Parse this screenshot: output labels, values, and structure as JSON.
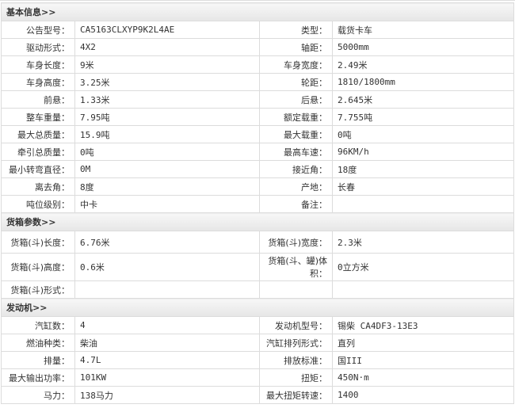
{
  "basic": {
    "title": "基本信息>>",
    "rows": [
      [
        "公告型号：",
        "CA5163CLXYP9K2L4AE",
        "类型：",
        "载货卡车"
      ],
      [
        "驱动形式：",
        "4X2",
        "轴距：",
        "5000mm"
      ],
      [
        "车身长度：",
        "9米",
        "车身宽度：",
        "2.49米"
      ],
      [
        "车身高度：",
        "3.25米",
        "轮距：",
        "1810/1800mm"
      ],
      [
        "前悬：",
        "1.33米",
        "后悬：",
        "2.645米"
      ],
      [
        "整车重量：",
        "7.95吨",
        "额定载重：",
        "7.755吨"
      ],
      [
        "最大总质量：",
        "15.9吨",
        "最大载重：",
        "0吨"
      ],
      [
        "牵引总质量：",
        "0吨",
        "最高车速：",
        "96KM/h"
      ],
      [
        "最小转弯直径：",
        "0M",
        "接近角：",
        "18度"
      ],
      [
        "离去角：",
        "8度",
        "产地：",
        "长春"
      ],
      [
        "吨位级别：",
        "中卡",
        "备注：",
        ""
      ]
    ]
  },
  "cargo": {
    "title": "货箱参数>>",
    "rows": [
      [
        "货箱(斗)长度：",
        "6.76米",
        "货箱(斗)宽度：",
        "2.3米"
      ],
      [
        "货箱(斗)高度：",
        "0.6米",
        "货箱(斗、罐)体积：",
        "0立方米"
      ],
      [
        "货箱(斗)形式：",
        "",
        "",
        ""
      ]
    ]
  },
  "engine": {
    "title": "发动机>>",
    "rows": [
      [
        "汽缸数：",
        "4",
        "发动机型号：",
        "锡柴 CA4DF3-13E3"
      ],
      [
        "燃油种类：",
        "柴油",
        "汽缸排列形式：",
        "直列"
      ],
      [
        "排量：",
        "4.7L",
        "排放标准：",
        "国III"
      ],
      [
        "最大输出功率：",
        "101KW",
        "扭矩：",
        "450N·m"
      ],
      [
        "马力：",
        "138马力",
        "最大扭矩转速：",
        "1400"
      ]
    ]
  }
}
